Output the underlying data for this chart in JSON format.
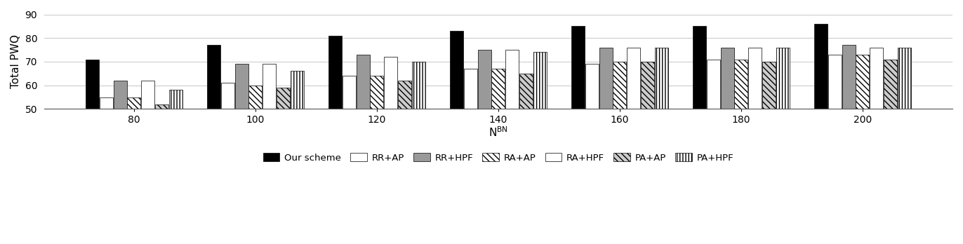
{
  "x_labels": [
    "80",
    "100",
    "120",
    "140",
    "160",
    "180",
    "200"
  ],
  "series_order": [
    "Our scheme",
    "RR+AP",
    "RR+HPF",
    "RA+AP",
    "RA+HPF",
    "PA+AP",
    "PA+HPF"
  ],
  "series": {
    "Our scheme": [
      71,
      77,
      81,
      83,
      85,
      85,
      86
    ],
    "RR+AP": [
      55,
      61,
      64,
      67,
      69,
      71,
      73
    ],
    "RR+HPF": [
      62,
      69,
      73,
      75,
      76,
      76,
      77
    ],
    "RA+AP": [
      55,
      60,
      64,
      67,
      70,
      71,
      73
    ],
    "RA+HPF": [
      62,
      69,
      72,
      75,
      76,
      76,
      76
    ],
    "PA+AP": [
      52,
      59,
      62,
      65,
      70,
      70,
      71
    ],
    "PA+HPF": [
      58,
      66,
      70,
      74,
      76,
      76,
      76
    ]
  },
  "series_styles": [
    {
      "name": "Our scheme",
      "facecolor": "black",
      "hatch": "",
      "edgecolor": "black"
    },
    {
      "name": "RR+AP",
      "facecolor": "white",
      "hatch": "",
      "edgecolor": "black"
    },
    {
      "name": "RR+HPF",
      "facecolor": "#999999",
      "hatch": "",
      "edgecolor": "black"
    },
    {
      "name": "RA+AP",
      "facecolor": "white",
      "hatch": "\\\\\\\\",
      "edgecolor": "black"
    },
    {
      "name": "RA+HPF",
      "facecolor": "white",
      "hatch": "====",
      "edgecolor": "black"
    },
    {
      "name": "PA+AP",
      "facecolor": "#cccccc",
      "hatch": "\\\\\\\\",
      "edgecolor": "black"
    },
    {
      "name": "PA+HPF",
      "facecolor": "white",
      "hatch": "||||",
      "edgecolor": "black"
    }
  ],
  "ylabel": "Total PWQ",
  "xlabel": "N^{BN}",
  "ylim": [
    50,
    90
  ],
  "yticks": [
    50,
    60,
    70,
    80,
    90
  ],
  "bar_width": 0.11,
  "bar_gap": 0.005
}
